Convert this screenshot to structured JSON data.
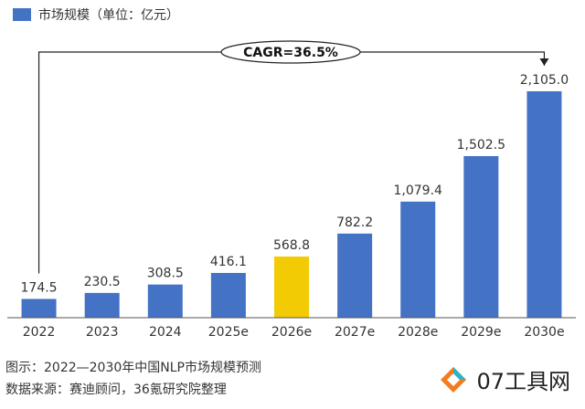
{
  "legend": {
    "label": "市场规模（单位：亿元）",
    "color": "#4472C4"
  },
  "cagr_label": "CAGR=36.5%",
  "chart_data": {
    "type": "bar",
    "categories": [
      "2022",
      "2023",
      "2024",
      "2025e",
      "2026e",
      "2027e",
      "2028e",
      "2029e",
      "2030e"
    ],
    "series": [
      {
        "name": "市场规模（单位：亿元）",
        "values": [
          174.5,
          230.5,
          308.5,
          416.1,
          568.8,
          782.2,
          1079.4,
          1502.5,
          2105.0
        ],
        "labels": [
          "174.5",
          "230.5",
          "308.5",
          "416.1",
          "568.8",
          "782.2",
          "1,079.4",
          "1,502.5",
          "2,105.0"
        ]
      }
    ],
    "highlight_index": 4,
    "bar_color": "#4472C4",
    "highlight_color": "#F2CB05",
    "ylim": [
      0,
      2300
    ],
    "grid": false,
    "annotation": "CAGR=36.5%"
  },
  "captions": {
    "line1": "图示：2022—2030年中国NLP市场规模预测",
    "line2": "数据来源：赛迪顾问，36氪研究院整理"
  },
  "watermark": {
    "text": "07工具网"
  }
}
